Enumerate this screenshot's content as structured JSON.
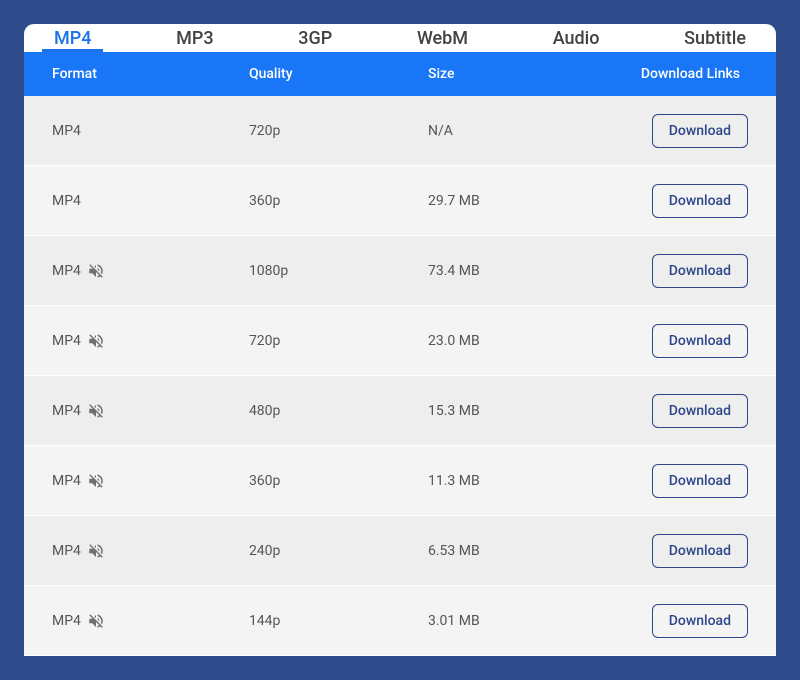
{
  "colors": {
    "page_bg": "#2d4a8a",
    "card_bg": "#ffffff",
    "tab_active": "#1a73e8",
    "tab_inactive": "#424242",
    "header_bg": "#1976f6",
    "header_text": "#ffffff",
    "row_bg_odd": "#eeeeee",
    "row_bg_even": "#f4f4f4",
    "row_text": "#555555",
    "button_border": "#2e478a",
    "button_text": "#2e478a",
    "muted_icon": "#707070"
  },
  "tabs": {
    "items": [
      {
        "label": "MP4",
        "active": true
      },
      {
        "label": "MP3",
        "active": false
      },
      {
        "label": "3GP",
        "active": false
      },
      {
        "label": "WebM",
        "active": false
      },
      {
        "label": "Audio",
        "active": false
      },
      {
        "label": "Subtitle",
        "active": false
      }
    ]
  },
  "table": {
    "columns": {
      "format": "Format",
      "quality": "Quality",
      "size": "Size",
      "download": "Download Links"
    },
    "download_label": "Download",
    "rows": [
      {
        "format": "MP4",
        "muted": false,
        "quality": "720p",
        "size": "N/A"
      },
      {
        "format": "MP4",
        "muted": false,
        "quality": "360p",
        "size": "29.7 MB"
      },
      {
        "format": "MP4",
        "muted": true,
        "quality": "1080p",
        "size": "73.4 MB"
      },
      {
        "format": "MP4",
        "muted": true,
        "quality": "720p",
        "size": "23.0 MB"
      },
      {
        "format": "MP4",
        "muted": true,
        "quality": "480p",
        "size": "15.3 MB"
      },
      {
        "format": "MP4",
        "muted": true,
        "quality": "360p",
        "size": "11.3 MB"
      },
      {
        "format": "MP4",
        "muted": true,
        "quality": "240p",
        "size": "6.53 MB"
      },
      {
        "format": "MP4",
        "muted": true,
        "quality": "144p",
        "size": "3.01 MB"
      }
    ]
  }
}
